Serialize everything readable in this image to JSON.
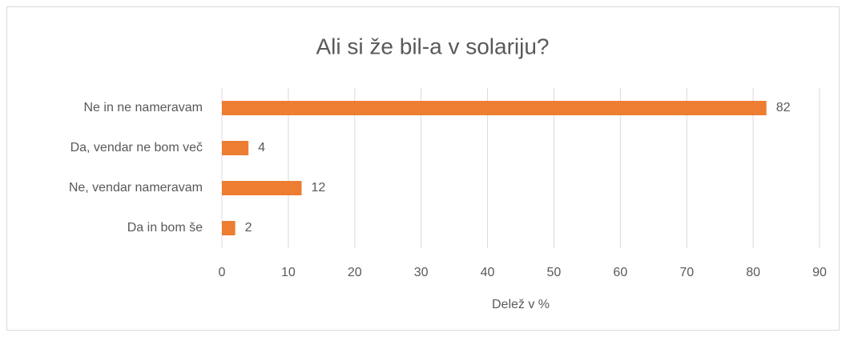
{
  "chart_data": {
    "type": "bar",
    "orientation": "horizontal",
    "title": "Ali si že bil-a v solariju?",
    "categories": [
      "Ne in ne nameravam",
      "Da, vendar ne bom več",
      "Ne, vendar nameravam",
      "Da in bom še"
    ],
    "values": [
      82,
      4,
      12,
      2
    ],
    "color": "#ed7d31",
    "xlabel": "Delež v %",
    "xlim": [
      0,
      90
    ],
    "xticks": [
      0,
      10,
      20,
      30,
      40,
      50,
      60,
      70,
      80,
      90
    ],
    "grid": true
  }
}
